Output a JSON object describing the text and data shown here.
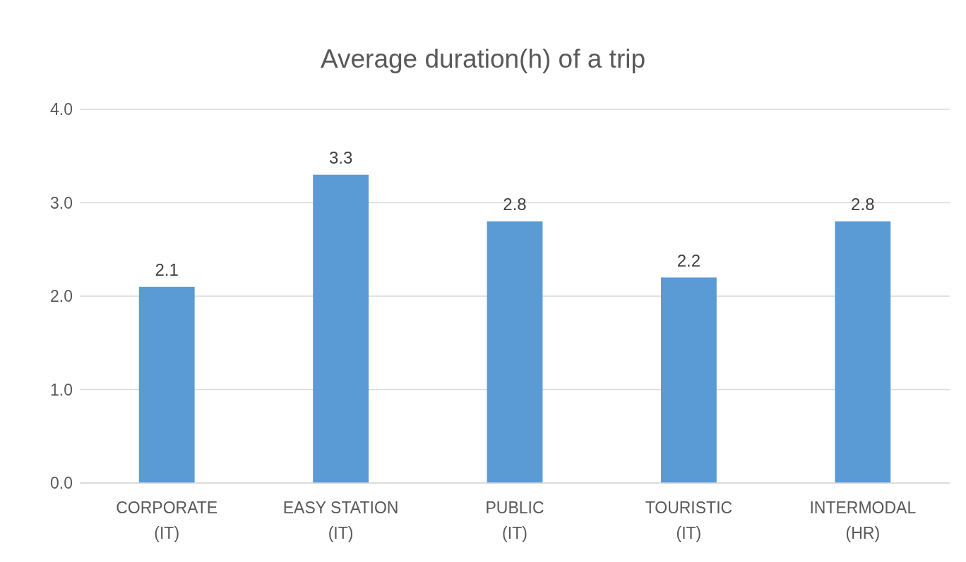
{
  "chart_data": {
    "type": "bar",
    "title": "Average duration(h) of a trip",
    "categories": [
      "CORPORATE\n(IT)",
      "EASY STATION\n(IT)",
      "PUBLIC\n(IT)",
      "TOURISTIC\n(IT)",
      "INTERMODAL\n(HR)"
    ],
    "values": [
      2.1,
      3.3,
      2.8,
      2.2,
      2.8
    ],
    "color": "#5b9bd5",
    "ylim": [
      0,
      4
    ],
    "yticks": [
      {
        "value": 0,
        "label": "0.0"
      },
      {
        "value": 1,
        "label": "1.0"
      },
      {
        "value": 2,
        "label": "2.0"
      },
      {
        "value": 3,
        "label": "3.0"
      },
      {
        "value": 4,
        "label": "4.0"
      }
    ],
    "grid": "y",
    "data_labels": true
  }
}
